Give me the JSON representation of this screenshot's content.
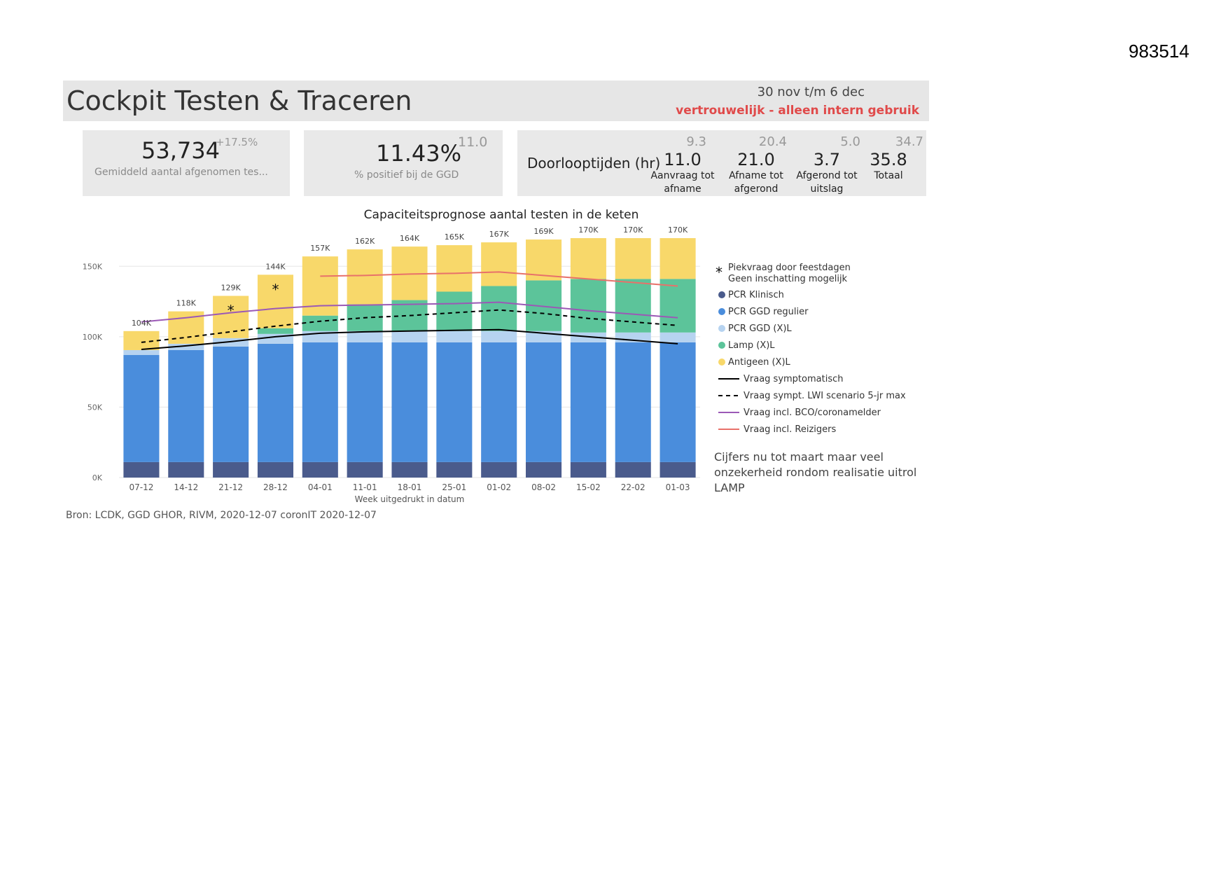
{
  "doc_id": "983514",
  "header": {
    "title": "Cockpit Testen & Traceren",
    "date_range": "30 nov t/m 6 dec",
    "confidential": "vertrouwelijk - alleen intern gebruik"
  },
  "kpis": {
    "tests": {
      "value": "53,734",
      "delta": "+17.5%",
      "label": "Gemiddeld aantal afgenomen tes..."
    },
    "positive": {
      "value": "11.43%",
      "target": "11.0",
      "label": "% positief bij de GGD"
    }
  },
  "doorlooptijden": {
    "title": "Doorlooptijden (hr)",
    "items": [
      {
        "target": "9.3",
        "value": "11.0",
        "label1": "Aanvraag tot",
        "label2": "afname"
      },
      {
        "target": "20.4",
        "value": "21.0",
        "label1": "Afname tot",
        "label2": "afgerond"
      },
      {
        "target": "5.0",
        "value": "3.7",
        "label1": "Afgerond tot",
        "label2": "uitslag"
      },
      {
        "target": "34.7",
        "value": "35.8",
        "label1": "Totaal",
        "label2": ""
      }
    ]
  },
  "source": "Bron: LCDK, GGD GHOR, RIVM, 2020-12-07  coronIT 2020-12-07",
  "colors": {
    "pcr_klinisch": "#4a5b8c",
    "pcr_regulier": "#4a8ddc",
    "pcr_xl": "#b6d3f0",
    "lamp": "#5cc49a",
    "antigeen": "#f8d86a",
    "symptomatisch": "#000000",
    "lwi": "#000000",
    "bco": "#9b59b6",
    "reizigers": "#e8716a"
  },
  "chart_data": {
    "type": "bar",
    "title": "Capaciteitsprognose aantal testen in de keten",
    "xlabel": "Week uitgedrukt in datum",
    "ylabel": "",
    "ylim": [
      0,
      175000
    ],
    "yticks": [
      {
        "value": 0,
        "label": "0K"
      },
      {
        "value": 50000,
        "label": "50K"
      },
      {
        "value": 100000,
        "label": "100K"
      },
      {
        "value": 150000,
        "label": "150K"
      }
    ],
    "categories": [
      "07-12",
      "14-12",
      "21-12",
      "28-12",
      "04-01",
      "11-01",
      "18-01",
      "25-01",
      "01-02",
      "08-02",
      "15-02",
      "22-02",
      "01-03"
    ],
    "totals": [
      "104K",
      "118K",
      "129K",
      "144K",
      "157K",
      "162K",
      "164K",
      "165K",
      "167K",
      "169K",
      "170K",
      "170K",
      "170K"
    ],
    "stars": [
      false,
      false,
      true,
      true,
      false,
      false,
      false,
      false,
      false,
      false,
      false,
      false,
      false
    ],
    "series": [
      {
        "name": "PCR Klinisch",
        "values": [
          11000,
          11000,
          11000,
          11000,
          11000,
          11000,
          11000,
          11000,
          11000,
          11000,
          11000,
          11000,
          11000
        ]
      },
      {
        "name": "PCR GGD regulier",
        "values": [
          76000,
          79500,
          82000,
          84000,
          85000,
          85000,
          85000,
          85000,
          85000,
          85000,
          85000,
          85000,
          85000
        ]
      },
      {
        "name": "PCR GGD (X)L",
        "values": [
          3500,
          4500,
          6000,
          7000,
          8000,
          8000,
          8000,
          8000,
          8000,
          8000,
          7000,
          7000,
          7000
        ]
      },
      {
        "name": "Lamp (X)L",
        "values": [
          0,
          0,
          0,
          4000,
          11000,
          19000,
          22000,
          28000,
          32000,
          36000,
          38000,
          38000,
          38000
        ]
      },
      {
        "name": "Antigeen (X)L",
        "values": [
          13500,
          23000,
          30000,
          38000,
          42000,
          39000,
          38000,
          33000,
          31000,
          29000,
          29000,
          29000,
          29000
        ]
      }
    ],
    "lines": [
      {
        "name": "Vraag symptomatisch",
        "style": "solid",
        "values": [
          91000,
          93500,
          96500,
          100000,
          102500,
          103500,
          104000,
          104500,
          105000,
          102500,
          100000,
          97500,
          95000
        ]
      },
      {
        "name": "Vraag sympt. LWI scenario 5-jr max",
        "style": "dashed",
        "values": [
          96000,
          99500,
          103500,
          107500,
          111000,
          113500,
          115000,
          117000,
          119000,
          116500,
          113000,
          110500,
          108000
        ]
      },
      {
        "name": "Vraag incl. BCO/coronamelder",
        "style": "solid",
        "values": [
          110500,
          113500,
          117000,
          120000,
          122000,
          122500,
          123000,
          123500,
          124500,
          121500,
          118500,
          116000,
          113500
        ]
      },
      {
        "name": "Vraag incl. Reizigers",
        "style": "solid",
        "values": [
          null,
          null,
          null,
          null,
          143000,
          143500,
          144500,
          145000,
          146000,
          143500,
          141000,
          138500,
          136000
        ]
      }
    ],
    "legend_placement": "right",
    "legend_note": {
      "line1": "Piekvraag door feestdagen",
      "line2": "Geen inschatting mogelijk"
    },
    "annotation": [
      "Cijfers nu tot maart maar veel",
      "onzekerheid rondom realisatie uitrol",
      "LAMP"
    ]
  }
}
